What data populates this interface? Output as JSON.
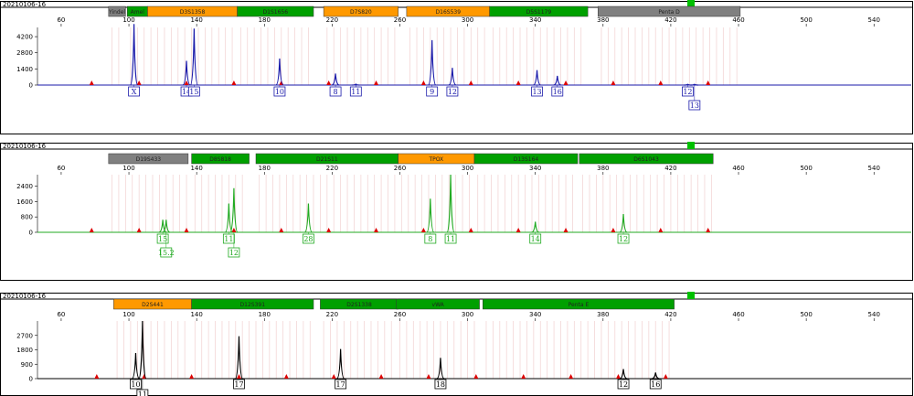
{
  "chart_data": [
    {
      "type": "line",
      "title": "20210106-16",
      "dye": "blue",
      "color": "#1a1aaa",
      "accent": "#00c000",
      "x_ticks": [
        60,
        100,
        140,
        180,
        220,
        260,
        300,
        340,
        380,
        420,
        460,
        500,
        540
      ],
      "xlim": [
        46,
        562
      ],
      "y_ticks": [
        0,
        1400,
        2800,
        4200
      ],
      "ylim": [
        0,
        5000
      ],
      "loci": [
        {
          "name": "Yindel",
          "start": 88,
          "end": 98,
          "color": "#808080"
        },
        {
          "name": "Amel",
          "start": 99,
          "end": 111,
          "color": "#00a000"
        },
        {
          "name": "D3S1358",
          "start": 111,
          "end": 164,
          "color": "#ff9900"
        },
        {
          "name": "D1S1656",
          "start": 164,
          "end": 209,
          "color": "#00a000"
        },
        {
          "name": "D7S820",
          "start": 215,
          "end": 259,
          "color": "#ff9900"
        },
        {
          "name": "D16S539",
          "start": 264,
          "end": 313,
          "color": "#ff9900"
        },
        {
          "name": "D5S1179",
          "start": 313,
          "end": 371,
          "color": "#00a000"
        },
        {
          "name": "Penta D",
          "start": 377,
          "end": 461,
          "color": "#808080"
        }
      ],
      "peaks": [
        {
          "x": 103,
          "h": 5300,
          "label": "X"
        },
        {
          "x": 134,
          "h": 2100,
          "label": "14"
        },
        {
          "x": 138.5,
          "h": 4900,
          "label": "15"
        },
        {
          "x": 189,
          "h": 2300,
          "label": "10"
        },
        {
          "x": 222,
          "h": 1000,
          "label": "8"
        },
        {
          "x": 234,
          "h": 80,
          "label": "11"
        },
        {
          "x": 279,
          "h": 3900,
          "label": "9"
        },
        {
          "x": 291,
          "h": 1500,
          "label": "12"
        },
        {
          "x": 341,
          "h": 1300,
          "label": "13"
        },
        {
          "x": 353,
          "h": 800,
          "label": "16"
        },
        {
          "x": 430,
          "h": 60,
          "label": "12"
        },
        {
          "x": 434,
          "h": 60,
          "label": "13"
        }
      ]
    },
    {
      "type": "line",
      "title": "20210106-16",
      "dye": "green",
      "color": "#22aa22",
      "accent": "#00c000",
      "x_ticks": [
        60,
        100,
        140,
        180,
        220,
        260,
        300,
        340,
        380,
        420,
        460,
        500,
        540
      ],
      "xlim": [
        46,
        562
      ],
      "y_ticks": [
        0,
        800,
        1600,
        2400
      ],
      "ylim": [
        0,
        3000
      ],
      "loci": [
        {
          "name": "D19S433",
          "start": 88,
          "end": 135,
          "color": "#808080"
        },
        {
          "name": "D8S818",
          "start": 137,
          "end": 171,
          "color": "#00a000"
        },
        {
          "name": "D21S11",
          "start": 175,
          "end": 259,
          "color": "#00a000"
        },
        {
          "name": "TPOX",
          "start": 259,
          "end": 304,
          "color": "#ff9900"
        },
        {
          "name": "D13S164",
          "start": 304,
          "end": 365,
          "color": "#00a000"
        },
        {
          "name": "D6S1043",
          "start": 366,
          "end": 445,
          "color": "#00a000"
        }
      ],
      "peaks": [
        {
          "x": 120,
          "h": 650,
          "label": "15"
        },
        {
          "x": 122,
          "h": 650,
          "label": "15.2"
        },
        {
          "x": 159,
          "h": 1500,
          "label": "11"
        },
        {
          "x": 162,
          "h": 2300,
          "label": "12"
        },
        {
          "x": 206,
          "h": 1500,
          "label": "28"
        },
        {
          "x": 278,
          "h": 1750,
          "label": "8"
        },
        {
          "x": 290,
          "h": 3000,
          "label": "11"
        },
        {
          "x": 340,
          "h": 550,
          "label": "14"
        },
        {
          "x": 392,
          "h": 950,
          "label": "12"
        }
      ]
    },
    {
      "type": "line",
      "title": "20210106-16",
      "dye": "black",
      "color": "#000000",
      "accent": "#00c000",
      "x_ticks": [
        60,
        100,
        140,
        180,
        220,
        260,
        300,
        340,
        380,
        420,
        460,
        500,
        540
      ],
      "xlim": [
        46,
        562
      ],
      "y_ticks": [
        0,
        900,
        1800,
        2700
      ],
      "ylim": [
        0,
        3600
      ],
      "loci": [
        {
          "name": "D2S441",
          "start": 91,
          "end": 137,
          "color": "#ff9900"
        },
        {
          "name": "D12S391",
          "start": 137,
          "end": 209,
          "color": "#00a000"
        },
        {
          "name": "D2S1338",
          "start": 213,
          "end": 259,
          "color": "#00a000"
        },
        {
          "name": "vWA",
          "start": 258,
          "end": 307,
          "color": "#00a000"
        },
        {
          "name": "Penta E",
          "start": 309,
          "end": 422,
          "color": "#00a000"
        }
      ],
      "peaks": [
        {
          "x": 104,
          "h": 1600,
          "label": "10"
        },
        {
          "x": 108,
          "h": 3600,
          "label": "11"
        },
        {
          "x": 165,
          "h": 2650,
          "label": "17"
        },
        {
          "x": 225,
          "h": 1850,
          "label": "17"
        },
        {
          "x": 284,
          "h": 1300,
          "label": "18"
        },
        {
          "x": 392,
          "h": 600,
          "label": "12"
        },
        {
          "x": 411,
          "h": 380,
          "label": "16"
        }
      ]
    }
  ]
}
